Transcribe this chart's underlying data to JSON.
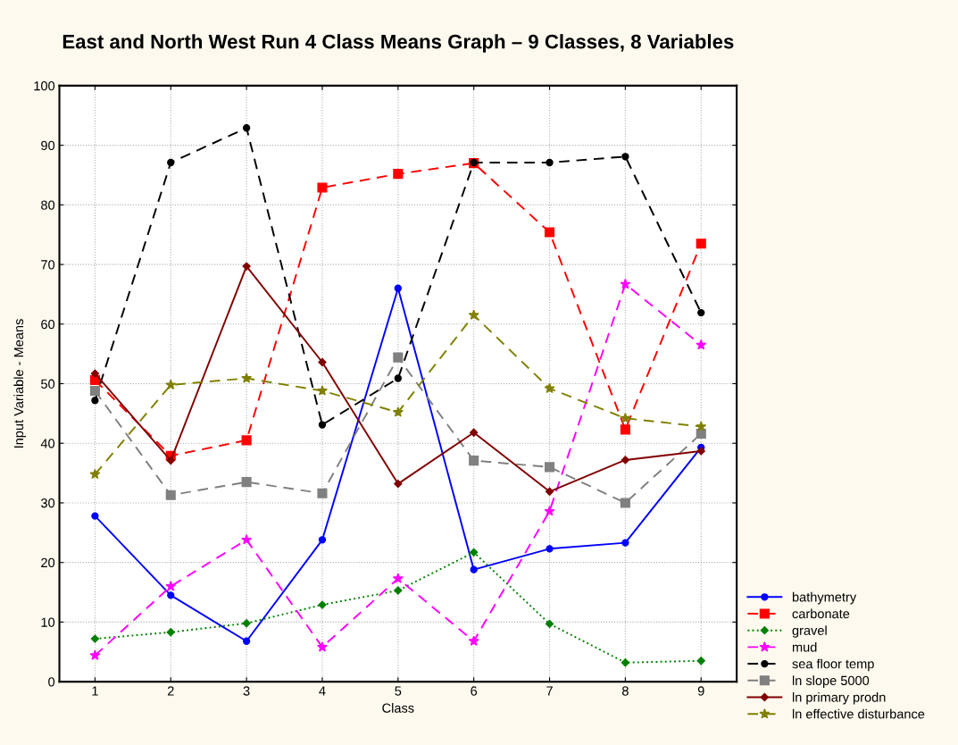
{
  "chart_data": {
    "type": "line",
    "title": "East and North West Run 4 Class Means Graph – 9 Classes, 8 Variables",
    "xlabel": "Class",
    "ylabel": "Input Variable - Means",
    "categories": [
      "1",
      "2",
      "3",
      "4",
      "5",
      "6",
      "7",
      "8",
      "9"
    ],
    "ylim": [
      0,
      100
    ],
    "yticks": [
      0,
      10,
      20,
      30,
      40,
      50,
      60,
      70,
      80,
      90,
      100
    ],
    "grid": true,
    "legend": "bottom right",
    "series": [
      {
        "name": "bathymetry",
        "color": "#0000ff",
        "marker": "circle",
        "line_style": "solid",
        "values": [
          27.8,
          14.5,
          6.8,
          23.8,
          66,
          18.8,
          22.3,
          23.3,
          39.3
        ]
      },
      {
        "name": "carbonate",
        "color": "#ff0000",
        "marker": "square",
        "line_style": "dashed",
        "values": [
          50.6,
          37.9,
          40.5,
          82.9,
          85.2,
          87,
          75.4,
          42.3,
          73.5
        ]
      },
      {
        "name": "gravel",
        "color": "#008000",
        "marker": "diamond",
        "line_style": "dotted",
        "values": [
          7.2,
          8.3,
          9.8,
          12.9,
          15.3,
          21.7,
          9.7,
          3.2,
          3.5
        ]
      },
      {
        "name": "mud",
        "color": "#ff00ff",
        "marker": "star",
        "line_style": "dashed",
        "values": [
          4.4,
          16,
          23.8,
          5.8,
          17.3,
          6.8,
          28.6,
          66.7,
          56.5
        ]
      },
      {
        "name": "sea floor temp",
        "color": "#000000",
        "marker": "circle",
        "line_style": "dashed",
        "values": [
          47.2,
          87.1,
          92.9,
          43.1,
          50.9,
          87.1,
          87.1,
          88.1,
          61.9
        ]
      },
      {
        "name": "ln slope 5000",
        "color": "#808080",
        "marker": "square",
        "line_style": "dashed",
        "values": [
          48.8,
          31.3,
          33.5,
          31.6,
          54.4,
          37.1,
          36,
          30,
          41.6
        ]
      },
      {
        "name": "ln primary prodn",
        "color": "#800000",
        "marker": "diamond",
        "line_style": "solid",
        "values": [
          51.7,
          37.1,
          69.7,
          53.6,
          33.2,
          41.8,
          31.9,
          37.2,
          38.7
        ]
      },
      {
        "name": "ln effective disturbance",
        "color": "#808000",
        "marker": "star",
        "line_style": "dashed",
        "values": [
          34.8,
          49.8,
          50.9,
          48.8,
          45.2,
          61.5,
          49.2,
          44.2,
          42.8
        ]
      }
    ]
  }
}
